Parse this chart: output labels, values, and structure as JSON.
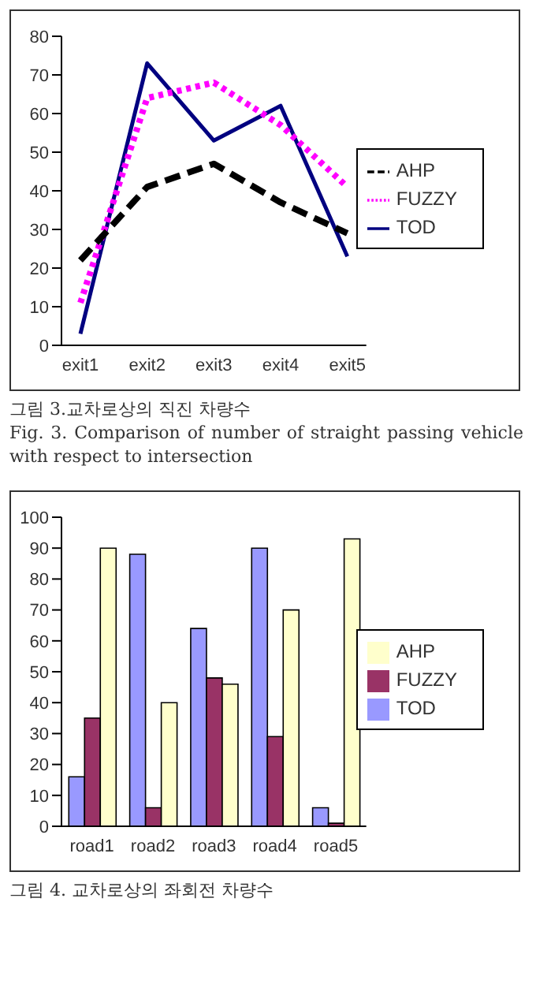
{
  "chart_data": [
    {
      "type": "line",
      "categories": [
        "exit1",
        "exit2",
        "exit3",
        "exit4",
        "exit5"
      ],
      "ylim": [
        0,
        80
      ],
      "yticks": [
        0,
        10,
        20,
        30,
        40,
        50,
        60,
        70,
        80
      ],
      "grid": false,
      "legend": "right",
      "marker": "none",
      "series": [
        {
          "name": "TOD",
          "color": "#000080",
          "line_style": "solid",
          "values": [
            3,
            73,
            53,
            62,
            23
          ]
        },
        {
          "name": "FUZZY",
          "color": "#ff00ff",
          "line_style": "dotted",
          "values": [
            11,
            64,
            68,
            57,
            41
          ]
        },
        {
          "name": "AHP",
          "color": "#000000",
          "line_style": "dashed",
          "values": [
            22,
            41,
            47,
            37,
            29
          ]
        }
      ],
      "annotations": [
        "그림 3.교차로상의 직진 차량수",
        "Fig. 3. Comparison of number of straight passing vehicle with respect to intersection"
      ]
    },
    {
      "type": "bar",
      "categories": [
        "road1",
        "road2",
        "road3",
        "road4",
        "road5"
      ],
      "ylim": [
        0,
        100
      ],
      "yticks": [
        0,
        10,
        20,
        30,
        40,
        50,
        60,
        70,
        80,
        90,
        100
      ],
      "grid": false,
      "legend": "right",
      "series": [
        {
          "name": "TOD",
          "color": "#9999ff",
          "values": [
            16,
            88,
            64,
            90,
            6
          ]
        },
        {
          "name": "FUZZY",
          "color": "#993366",
          "values": [
            35,
            6,
            48,
            29,
            1
          ]
        },
        {
          "name": "AHP",
          "color": "#ffffcc",
          "values": [
            90,
            40,
            46,
            70,
            93
          ]
        }
      ],
      "annotations": [
        "그림 4. 교차로상의 좌회전 차량수"
      ]
    }
  ]
}
